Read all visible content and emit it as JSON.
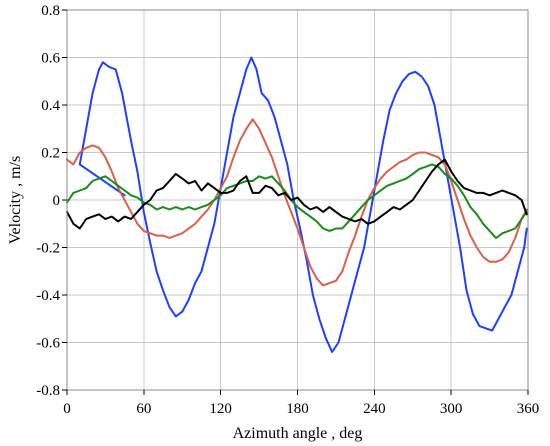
{
  "chart_data": {
    "type": "line",
    "title": "",
    "xlabel": "Azimuth angle , deg",
    "ylabel": "Velocity , m/s",
    "xlim": [
      0,
      360
    ],
    "ylim": [
      -0.8,
      0.8
    ],
    "xticks": [
      0,
      60,
      120,
      180,
      240,
      300,
      360
    ],
    "yticks": [
      -0.8,
      -0.6,
      -0.4,
      -0.2,
      0,
      0.2,
      0.4,
      0.6,
      0.8
    ],
    "xtick_labels": [
      "0",
      "60",
      "120",
      "180",
      "240",
      "300",
      "360"
    ],
    "ytick_labels": [
      "-0.8",
      "-0.6",
      "-0.4",
      "-0.2",
      "0",
      "0.2",
      "0.4",
      "0.6",
      "0.8"
    ],
    "grid": true,
    "legend": "none",
    "series": [
      {
        "color": "#1f3fff",
        "points": [
          [
            45,
            0.02
          ],
          [
            10,
            0.15
          ],
          [
            15,
            0.3
          ],
          [
            20,
            0.45
          ],
          [
            25,
            0.55
          ],
          [
            28,
            0.58
          ],
          [
            33,
            0.56
          ],
          [
            38,
            0.55
          ],
          [
            43,
            0.45
          ],
          [
            50,
            0.25
          ],
          [
            55,
            0.12
          ],
          [
            60,
            -0.05
          ],
          [
            65,
            -0.18
          ],
          [
            70,
            -0.3
          ],
          [
            75,
            -0.38
          ],
          [
            80,
            -0.45
          ],
          [
            85,
            -0.49
          ],
          [
            90,
            -0.47
          ],
          [
            95,
            -0.42
          ],
          [
            100,
            -0.35
          ],
          [
            105,
            -0.3
          ],
          [
            110,
            -0.2
          ],
          [
            115,
            -0.1
          ],
          [
            120,
            0.05
          ],
          [
            125,
            0.2
          ],
          [
            130,
            0.35
          ],
          [
            135,
            0.45
          ],
          [
            140,
            0.55
          ],
          [
            144,
            0.6
          ],
          [
            148,
            0.55
          ],
          [
            152,
            0.45
          ],
          [
            157,
            0.42
          ],
          [
            162,
            0.35
          ],
          [
            167,
            0.25
          ],
          [
            172,
            0.15
          ],
          [
            177,
            0.0
          ],
          [
            182,
            -0.12
          ],
          [
            187,
            -0.25
          ],
          [
            192,
            -0.4
          ],
          [
            197,
            -0.5
          ],
          [
            202,
            -0.58
          ],
          [
            207,
            -0.64
          ],
          [
            212,
            -0.6
          ],
          [
            217,
            -0.5
          ],
          [
            222,
            -0.4
          ],
          [
            227,
            -0.3
          ],
          [
            232,
            -0.2
          ],
          [
            237,
            -0.05
          ],
          [
            242,
            0.1
          ],
          [
            247,
            0.25
          ],
          [
            252,
            0.38
          ],
          [
            257,
            0.45
          ],
          [
            262,
            0.5
          ],
          [
            267,
            0.53
          ],
          [
            272,
            0.54
          ],
          [
            277,
            0.52
          ],
          [
            282,
            0.48
          ],
          [
            287,
            0.4
          ],
          [
            292,
            0.25
          ],
          [
            297,
            0.1
          ],
          [
            302,
            -0.05
          ],
          [
            307,
            -0.2
          ],
          [
            312,
            -0.38
          ],
          [
            317,
            -0.48
          ],
          [
            322,
            -0.53
          ],
          [
            327,
            -0.54
          ],
          [
            332,
            -0.55
          ],
          [
            337,
            -0.5
          ],
          [
            342,
            -0.45
          ],
          [
            347,
            -0.4
          ],
          [
            352,
            -0.3
          ],
          [
            357,
            -0.2
          ],
          [
            359,
            -0.12
          ]
        ]
      },
      {
        "color": "#d9604a",
        "points": [
          [
            0,
            0.17
          ],
          [
            5,
            0.15
          ],
          [
            10,
            0.2
          ],
          [
            15,
            0.22
          ],
          [
            20,
            0.23
          ],
          [
            25,
            0.22
          ],
          [
            30,
            0.18
          ],
          [
            35,
            0.12
          ],
          [
            40,
            0.05
          ],
          [
            45,
            0.0
          ],
          [
            50,
            -0.05
          ],
          [
            55,
            -0.1
          ],
          [
            60,
            -0.13
          ],
          [
            65,
            -0.14
          ],
          [
            70,
            -0.15
          ],
          [
            75,
            -0.15
          ],
          [
            80,
            -0.16
          ],
          [
            85,
            -0.15
          ],
          [
            90,
            -0.14
          ],
          [
            95,
            -0.12
          ],
          [
            100,
            -0.1
          ],
          [
            105,
            -0.07
          ],
          [
            110,
            -0.04
          ],
          [
            115,
            0.0
          ],
          [
            120,
            0.05
          ],
          [
            125,
            0.1
          ],
          [
            130,
            0.18
          ],
          [
            135,
            0.25
          ],
          [
            140,
            0.3
          ],
          [
            145,
            0.34
          ],
          [
            150,
            0.3
          ],
          [
            155,
            0.24
          ],
          [
            160,
            0.18
          ],
          [
            165,
            0.1
          ],
          [
            170,
            0.02
          ],
          [
            175,
            -0.05
          ],
          [
            180,
            -0.12
          ],
          [
            185,
            -0.2
          ],
          [
            190,
            -0.28
          ],
          [
            195,
            -0.33
          ],
          [
            200,
            -0.36
          ],
          [
            205,
            -0.35
          ],
          [
            210,
            -0.34
          ],
          [
            215,
            -0.3
          ],
          [
            220,
            -0.22
          ],
          [
            225,
            -0.15
          ],
          [
            230,
            -0.07
          ],
          [
            235,
            0.0
          ],
          [
            240,
            0.05
          ],
          [
            245,
            0.09
          ],
          [
            250,
            0.12
          ],
          [
            255,
            0.14
          ],
          [
            260,
            0.16
          ],
          [
            265,
            0.17
          ],
          [
            270,
            0.19
          ],
          [
            275,
            0.2
          ],
          [
            280,
            0.2
          ],
          [
            285,
            0.19
          ],
          [
            290,
            0.18
          ],
          [
            295,
            0.15
          ],
          [
            300,
            0.08
          ],
          [
            305,
            0.0
          ],
          [
            310,
            -0.08
          ],
          [
            315,
            -0.15
          ],
          [
            320,
            -0.2
          ],
          [
            325,
            -0.24
          ],
          [
            330,
            -0.26
          ],
          [
            335,
            -0.26
          ],
          [
            340,
            -0.25
          ],
          [
            345,
            -0.22
          ],
          [
            350,
            -0.16
          ],
          [
            355,
            -0.08
          ],
          [
            359,
            -0.04
          ]
        ]
      },
      {
        "color": "#1a8a1a",
        "points": [
          [
            0,
            -0.01
          ],
          [
            5,
            0.03
          ],
          [
            10,
            0.04
          ],
          [
            15,
            0.05
          ],
          [
            20,
            0.08
          ],
          [
            25,
            0.09
          ],
          [
            30,
            0.1
          ],
          [
            35,
            0.08
          ],
          [
            40,
            0.06
          ],
          [
            45,
            0.04
          ],
          [
            50,
            0.02
          ],
          [
            55,
            0.01
          ],
          [
            60,
            -0.01
          ],
          [
            65,
            -0.02
          ],
          [
            70,
            -0.04
          ],
          [
            75,
            -0.03
          ],
          [
            80,
            -0.04
          ],
          [
            85,
            -0.03
          ],
          [
            90,
            -0.04
          ],
          [
            95,
            -0.03
          ],
          [
            100,
            -0.04
          ],
          [
            105,
            -0.03
          ],
          [
            110,
            -0.02
          ],
          [
            115,
            0.0
          ],
          [
            120,
            0.02
          ],
          [
            125,
            0.05
          ],
          [
            130,
            0.06
          ],
          [
            135,
            0.07
          ],
          [
            140,
            0.08
          ],
          [
            145,
            0.08
          ],
          [
            150,
            0.1
          ],
          [
            155,
            0.09
          ],
          [
            160,
            0.1
          ],
          [
            165,
            0.07
          ],
          [
            170,
            0.04
          ],
          [
            175,
            0.0
          ],
          [
            180,
            -0.03
          ],
          [
            185,
            -0.05
          ],
          [
            190,
            -0.07
          ],
          [
            195,
            -0.09
          ],
          [
            200,
            -0.12
          ],
          [
            205,
            -0.13
          ],
          [
            210,
            -0.12
          ],
          [
            215,
            -0.12
          ],
          [
            220,
            -0.09
          ],
          [
            225,
            -0.06
          ],
          [
            230,
            -0.03
          ],
          [
            235,
            0.0
          ],
          [
            240,
            0.02
          ],
          [
            245,
            0.04
          ],
          [
            250,
            0.06
          ],
          [
            255,
            0.07
          ],
          [
            260,
            0.08
          ],
          [
            265,
            0.09
          ],
          [
            270,
            0.11
          ],
          [
            275,
            0.13
          ],
          [
            280,
            0.14
          ],
          [
            285,
            0.15
          ],
          [
            290,
            0.14
          ],
          [
            295,
            0.11
          ],
          [
            300,
            0.09
          ],
          [
            305,
            0.06
          ],
          [
            310,
            0.02
          ],
          [
            315,
            -0.03
          ],
          [
            320,
            -0.06
          ],
          [
            325,
            -0.1
          ],
          [
            330,
            -0.13
          ],
          [
            335,
            -0.16
          ],
          [
            340,
            -0.14
          ],
          [
            345,
            -0.13
          ],
          [
            350,
            -0.12
          ],
          [
            355,
            -0.08
          ],
          [
            359,
            -0.05
          ]
        ]
      },
      {
        "color": "#000000",
        "points": [
          [
            0,
            -0.05
          ],
          [
            5,
            -0.1
          ],
          [
            10,
            -0.12
          ],
          [
            15,
            -0.08
          ],
          [
            20,
            -0.07
          ],
          [
            25,
            -0.06
          ],
          [
            30,
            -0.08
          ],
          [
            35,
            -0.07
          ],
          [
            40,
            -0.09
          ],
          [
            45,
            -0.07
          ],
          [
            50,
            -0.08
          ],
          [
            55,
            -0.05
          ],
          [
            60,
            -0.02
          ],
          [
            65,
            0.0
          ],
          [
            70,
            0.04
          ],
          [
            75,
            0.05
          ],
          [
            80,
            0.08
          ],
          [
            85,
            0.11
          ],
          [
            90,
            0.09
          ],
          [
            95,
            0.07
          ],
          [
            100,
            0.08
          ],
          [
            105,
            0.04
          ],
          [
            110,
            0.07
          ],
          [
            115,
            0.05
          ],
          [
            120,
            0.03
          ],
          [
            125,
            0.03
          ],
          [
            130,
            0.04
          ],
          [
            135,
            0.08
          ],
          [
            140,
            0.1
          ],
          [
            145,
            0.03
          ],
          [
            150,
            0.03
          ],
          [
            155,
            0.06
          ],
          [
            160,
            0.05
          ],
          [
            165,
            0.02
          ],
          [
            170,
            0.03
          ],
          [
            175,
            0.0
          ],
          [
            180,
            0.01
          ],
          [
            185,
            -0.02
          ],
          [
            190,
            -0.04
          ],
          [
            195,
            -0.03
          ],
          [
            200,
            -0.05
          ],
          [
            205,
            -0.03
          ],
          [
            210,
            -0.05
          ],
          [
            215,
            -0.07
          ],
          [
            220,
            -0.08
          ],
          [
            225,
            -0.09
          ],
          [
            230,
            -0.08
          ],
          [
            235,
            -0.1
          ],
          [
            240,
            -0.09
          ],
          [
            245,
            -0.07
          ],
          [
            250,
            -0.05
          ],
          [
            255,
            -0.03
          ],
          [
            260,
            -0.04
          ],
          [
            265,
            -0.02
          ],
          [
            270,
            0.0
          ],
          [
            275,
            0.04
          ],
          [
            280,
            0.08
          ],
          [
            285,
            0.12
          ],
          [
            290,
            0.15
          ],
          [
            295,
            0.17
          ],
          [
            300,
            0.12
          ],
          [
            305,
            0.08
          ],
          [
            310,
            0.05
          ],
          [
            315,
            0.04
          ],
          [
            320,
            0.03
          ],
          [
            325,
            0.03
          ],
          [
            330,
            0.02
          ],
          [
            335,
            0.03
          ],
          [
            340,
            0.04
          ],
          [
            345,
            0.03
          ],
          [
            350,
            0.02
          ],
          [
            355,
            0.0
          ],
          [
            359,
            -0.06
          ]
        ]
      }
    ]
  }
}
